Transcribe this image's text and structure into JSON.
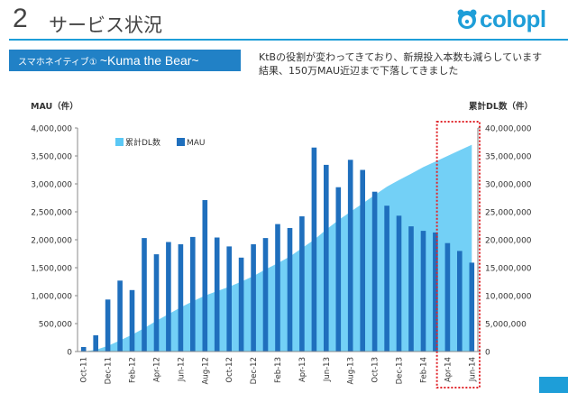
{
  "slide": {
    "number": "2",
    "title": "サービス状況"
  },
  "logo": {
    "text": "colopl"
  },
  "banner": {
    "subtitle": "スマホネイティブ①",
    "title": "~Kuma the Bear~"
  },
  "description": [
    "KtBの役割が変わってきており、新規投入本数も減らしています",
    "結果、150万MAU近辺まで下落してきました"
  ],
  "colors": {
    "accent": "#1e9ed8",
    "banner": "#2181c6",
    "mau": "#1f6fbd",
    "dl_area": "#5bc8f5",
    "highlight": "#e0262b"
  },
  "chart_data": {
    "type": "bar",
    "categories": [
      "Oct-11",
      "Nov-11",
      "Dec-11",
      "Jan-12",
      "Feb-12",
      "Mar-12",
      "Apr-12",
      "May-12",
      "Jun-12",
      "Jul-12",
      "Aug-12",
      "Sep-12",
      "Oct-12",
      "Nov-12",
      "Dec-12",
      "Jan-13",
      "Feb-13",
      "Mar-13",
      "Apr-13",
      "May-13",
      "Jun-13",
      "Jul-13",
      "Aug-13",
      "Sep-13",
      "Oct-13",
      "Nov-13",
      "Dec-13",
      "Jan-14",
      "Feb-14",
      "Mar-14",
      "Apr-14",
      "May-14",
      "Jun-14"
    ],
    "x_tick_labels": [
      "Oct-11",
      "Dec-11",
      "Feb-12",
      "Apr-12",
      "Jun-12",
      "Aug-12",
      "Oct-12",
      "Dec-12",
      "Feb-13",
      "Apr-13",
      "Jun-13",
      "Aug-13",
      "Oct-13",
      "Dec-13",
      "Feb-14",
      "Apr-14",
      "Jun-14"
    ],
    "series": [
      {
        "name": "MAU",
        "type": "bar",
        "axis": "left",
        "values": [
          80000,
          290000,
          930000,
          1270000,
          1100000,
          2030000,
          1740000,
          1960000,
          1920000,
          2050000,
          2710000,
          2040000,
          1880000,
          1680000,
          1920000,
          2030000,
          2280000,
          2210000,
          2420000,
          3650000,
          3340000,
          2940000,
          3430000,
          3250000,
          2860000,
          2610000,
          2430000,
          2240000,
          2160000,
          2130000,
          1940000,
          1800000,
          1590000
        ]
      },
      {
        "name": "累計DL数",
        "type": "area",
        "axis": "right",
        "values": [
          0,
          300000,
          1000000,
          2000000,
          3000000,
          4200000,
          5500000,
          6700000,
          7900000,
          9000000,
          10000000,
          10800000,
          11600000,
          12500000,
          13500000,
          14700000,
          15800000,
          17000000,
          18500000,
          20000000,
          21800000,
          23500000,
          25000000,
          26500000,
          28000000,
          29500000,
          30700000,
          31800000,
          33000000,
          34000000,
          35000000,
          36000000,
          37000000
        ]
      }
    ],
    "y_left": {
      "label": "MAU（件）",
      "min": 0,
      "max": 4000000,
      "ticks": [
        "0",
        "500,000",
        "1,000,000",
        "1,500,000",
        "2,000,000",
        "2,500,000",
        "3,000,000",
        "3,500,000",
        "4,000,000"
      ]
    },
    "y_right": {
      "label": "累計DL数（件）",
      "min": 0,
      "max": 40000000,
      "ticks": [
        "0",
        "5,000,000",
        "10,000,000",
        "15,000,000",
        "20,000,000",
        "25,000,000",
        "30,000,000",
        "35,000,000",
        "40,000,000"
      ]
    },
    "legend": {
      "placement": "top-left",
      "entries": [
        "累計DL数",
        "MAU"
      ]
    },
    "highlight_range": [
      "Apr-14",
      "Jun-14"
    ],
    "grid": false
  }
}
